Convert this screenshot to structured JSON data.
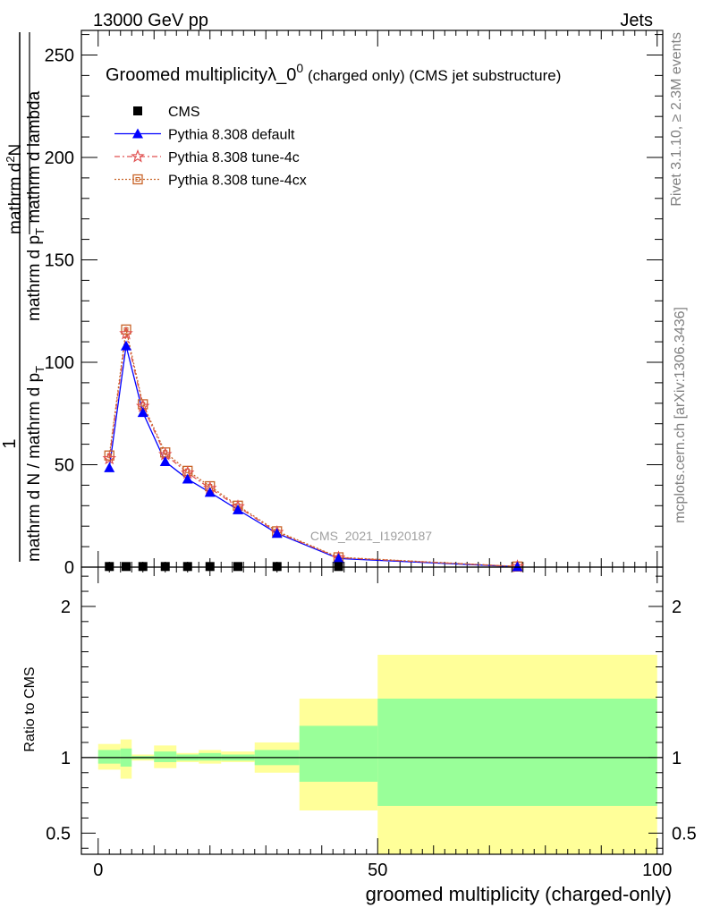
{
  "header": {
    "left": "13000 GeV pp",
    "right": "Jets"
  },
  "side": {
    "top": "Rivet 3.1.10, ≥ 2.3M events",
    "bottom": "mcplots.cern.ch [arXiv:1306.3436]"
  },
  "watermark": "CMS_2021_I1920187",
  "chart_data": [
    {
      "type": "line",
      "title_main": "Groomed multiplicityλ_0",
      "title_sup": "0",
      "title_rest": " (charged only) (CMS jet substructure)",
      "ylabel": {
        "numerator": "1",
        "denominator": "mathrm d N / mathrm d p",
        "denominator_sub": "T",
        "numerator_deriv_num": "mathrm d",
        "numerator_deriv_sup": "2",
        "numerator_deriv_num2": "N",
        "numerator_deriv_den": "mathrm d p",
        "numerator_deriv_den_sub": "T",
        "numerator_deriv_den2": " mathrm d lambda"
      },
      "xlim": [
        -3,
        101
      ],
      "ylim": [
        0,
        262
      ],
      "yticks": [
        0,
        50,
        100,
        150,
        200,
        250
      ],
      "ytick_labels": [
        "0",
        "50",
        "100",
        "150",
        "200",
        "250"
      ],
      "x": [
        2,
        5,
        8,
        12,
        16,
        20,
        25,
        32,
        43,
        75
      ],
      "legend_position": "top-left",
      "series": [
        {
          "name": "CMS",
          "color": "#000000",
          "marker": "square",
          "values": [
            0.3,
            0.3,
            0.3,
            0.3,
            0.3,
            0.3,
            0.3,
            0.3,
            0.3,
            null
          ]
        },
        {
          "name": "Pythia 8.308 default",
          "color": "#0000ff",
          "marker": "triangle",
          "values": [
            48.5,
            108,
            75.5,
            51.5,
            43,
            36.5,
            28,
            16.5,
            4.2,
            0.2
          ]
        },
        {
          "name": "Pythia 8.308 tune-4c",
          "color": "#e05050",
          "marker": "star",
          "values": [
            53,
            114,
            78.5,
            55,
            46,
            38.5,
            29.5,
            17,
            4.6,
            0.3
          ]
        },
        {
          "name": "Pythia 8.308 tune-4cx",
          "color": "#c86428",
          "marker": "open-square",
          "values": [
            54.5,
            116,
            79.5,
            56,
            47,
            39.5,
            30,
            17.5,
            4.8,
            0.3
          ]
        }
      ]
    },
    {
      "type": "area",
      "ylabel": "Ratio to CMS",
      "xlabel": "groomed multiplicity (charged-only)",
      "xlim": [
        -3,
        101
      ],
      "ylim": [
        0.36,
        2.26
      ],
      "yticks": [
        0.5,
        1,
        2
      ],
      "ytick_labels": [
        "0.5",
        "1",
        "2"
      ],
      "xticks": [
        0,
        50,
        100
      ],
      "xtick_labels": [
        "0",
        "50",
        "100"
      ],
      "bins": [
        {
          "lo": 0,
          "hi": 4,
          "yellow": [
            0.92,
            1.09
          ],
          "green": [
            0.96,
            1.05
          ]
        },
        {
          "lo": 4,
          "hi": 6,
          "yellow": [
            0.86,
            1.12
          ],
          "green": [
            0.94,
            1.06
          ]
        },
        {
          "lo": 6,
          "hi": 10,
          "yellow": [
            0.98,
            1.02
          ],
          "green": [
            0.99,
            1.01
          ]
        },
        {
          "lo": 10,
          "hi": 14,
          "yellow": [
            0.93,
            1.08
          ],
          "green": [
            0.97,
            1.04
          ]
        },
        {
          "lo": 14,
          "hi": 18,
          "yellow": [
            0.97,
            1.03
          ],
          "green": [
            0.98,
            1.02
          ]
        },
        {
          "lo": 18,
          "hi": 22,
          "yellow": [
            0.96,
            1.05
          ],
          "green": [
            0.98,
            1.03
          ]
        },
        {
          "lo": 22,
          "hi": 28,
          "yellow": [
            0.97,
            1.04
          ],
          "green": [
            0.98,
            1.02
          ]
        },
        {
          "lo": 28,
          "hi": 36,
          "yellow": [
            0.9,
            1.1
          ],
          "green": [
            0.95,
            1.05
          ]
        },
        {
          "lo": 36,
          "hi": 50,
          "yellow": [
            0.65,
            1.39
          ],
          "green": [
            0.84,
            1.21
          ]
        },
        {
          "lo": 50,
          "hi": 100,
          "yellow": [
            0.36,
            1.68
          ],
          "green": [
            0.68,
            1.39
          ]
        }
      ]
    }
  ]
}
